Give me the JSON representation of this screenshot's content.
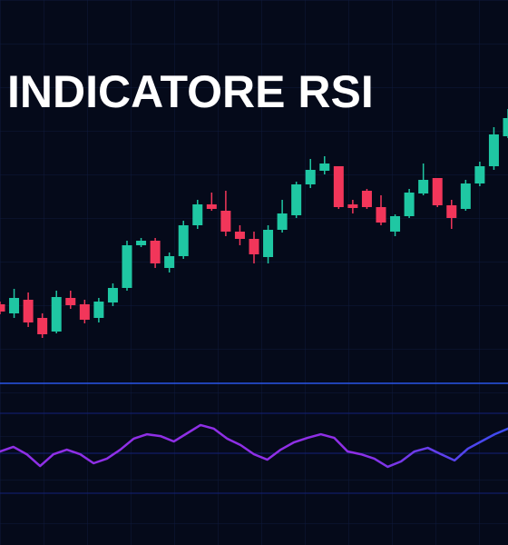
{
  "chart_data": [
    {
      "type": "candlestick",
      "title": "INDICATORE RSI",
      "up_color": "#1fc7a3",
      "down_color": "#f2365a",
      "ylim": [
        0,
        210
      ],
      "open": [
        42.5,
        37.5,
        45,
        35,
        27.5,
        46,
        42.5,
        35,
        43.5,
        51.5,
        75,
        77.5,
        62.5,
        69,
        86,
        97.5,
        94,
        82.5,
        78.5,
        68.5,
        83.5,
        91.5,
        108.5,
        116,
        118.5,
        97.5,
        105,
        96,
        82.5,
        91,
        103.5,
        112,
        97,
        95,
        109,
        118.5,
        135
      ],
      "high": [
        44,
        51,
        49,
        37.5,
        50,
        50,
        45,
        46,
        54,
        77.5,
        79,
        79,
        71,
        88.5,
        100,
        104,
        105,
        86,
        82.5,
        86,
        100,
        110,
        122.5,
        124,
        118.5,
        100,
        106,
        102.5,
        92,
        106,
        120,
        112,
        100,
        111,
        121,
        140,
        150
      ],
      "low": [
        37,
        35,
        30,
        24,
        26.5,
        40,
        32,
        32.5,
        41.5,
        50,
        74,
        62.5,
        60,
        67.5,
        84,
        94,
        80,
        75,
        65,
        65,
        82,
        90,
        106.5,
        114,
        95,
        92.5,
        95,
        86,
        80,
        90,
        102.5,
        96,
        84,
        94,
        107.5,
        116.5,
        134
      ],
      "close": [
        38.5,
        46,
        32.5,
        26,
        46.5,
        42,
        34,
        44,
        51.5,
        75,
        77.5,
        65,
        69,
        86,
        97.5,
        95,
        82.5,
        78.5,
        70,
        83.5,
        92.5,
        108.5,
        116.5,
        120,
        96,
        95.5,
        96,
        87.5,
        91,
        104,
        111,
        97,
        90,
        109,
        118.5,
        136,
        145
      ]
    },
    {
      "type": "line",
      "color_stops": [
        "#8f2fe6",
        "#3a4cf0"
      ],
      "ylim": [
        5,
        85
      ],
      "yticks": [
        30,
        50,
        70
      ],
      "grid": true,
      "values": [
        50.9,
        53.2,
        49.5,
        43.6,
        49.5,
        51.8,
        49.5,
        45,
        47.3,
        51.8,
        57.3,
        59.5,
        58.6,
        55.9,
        60,
        64.1,
        62.3,
        57.3,
        54.1,
        49.5,
        46.8,
        51.8,
        55.5,
        57.7,
        59.5,
        57.7,
        50.9,
        49.5,
        47.3,
        43.2,
        45.9,
        50.9,
        52.7,
        49.5,
        46.4,
        52.3,
        55.9,
        59.5,
        62.3
      ]
    }
  ]
}
